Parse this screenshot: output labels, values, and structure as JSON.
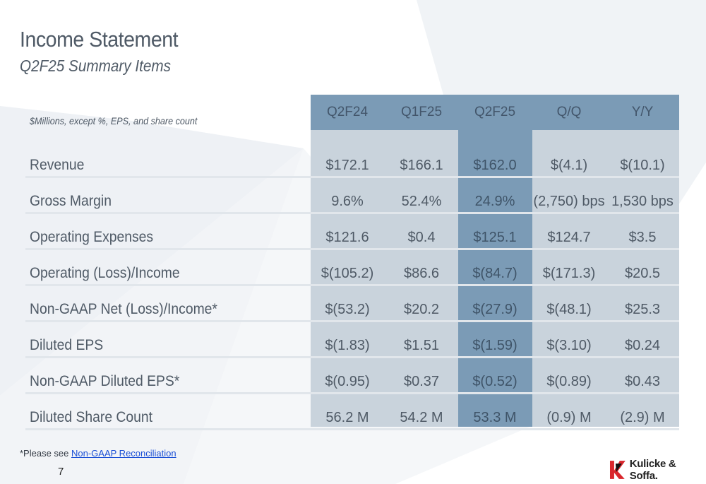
{
  "header": {
    "title": "Income Statement",
    "subtitle": "Q2F25 Summary Items"
  },
  "table": {
    "units_note": "$Millions, except %, EPS, and share count",
    "columns": [
      "Q2F24",
      "Q1F25",
      "Q2F25",
      "Q/Q",
      "Y/Y"
    ],
    "highlighted_column": "Q2F25",
    "rows": [
      {
        "label": "Revenue",
        "values": [
          "$172.1",
          "$166.1",
          "$162.0",
          "$(4.1)",
          "$(10.1)"
        ]
      },
      {
        "label": "Gross Margin",
        "values": [
          "9.6%",
          "52.4%",
          "24.9%",
          "(2,750) bps",
          "1,530 bps"
        ]
      },
      {
        "label": "Operating Expenses",
        "values": [
          "$121.6",
          "$0.4",
          "$125.1",
          "$124.7",
          "$3.5"
        ]
      },
      {
        "label": "Operating (Loss)/Income",
        "values": [
          "$(105.2)",
          "$86.6",
          "$(84.7)",
          "$(171.3)",
          "$20.5"
        ]
      },
      {
        "label": "Non-GAAP Net (Loss)/Income*",
        "values": [
          "$(53.2)",
          "$20.2",
          "$(27.9)",
          "$(48.1)",
          "$25.3"
        ]
      },
      {
        "label": "Diluted EPS",
        "values": [
          "$(1.83)",
          "$1.51",
          "$(1.59)",
          "$(3.10)",
          "$0.24"
        ]
      },
      {
        "label": "Non-GAAP Diluted EPS*",
        "values": [
          "$(0.95)",
          "$0.37",
          "$(0.52)",
          "$(0.89)",
          "$0.43"
        ]
      },
      {
        "label": "Diluted Share Count",
        "values": [
          "56.2 M",
          "54.2 M",
          "53.3 M",
          "(0.9) M",
          "(2.9) M"
        ]
      }
    ]
  },
  "footer": {
    "footnote_prefix": "*Please see ",
    "footnote_link": "Non-GAAP Reconciliation",
    "page_number": "7",
    "logo_text": "Kulicke & Soffa.",
    "logo_icon": "ks-logo-mark-icon"
  },
  "colors": {
    "header_band": "#7b9bb6",
    "column_bg": "#c9d3dc",
    "highlight_column": "#7b9bb6",
    "text": "#4f5a66",
    "link": "#1a4fd6",
    "logo_red": "#d9262b"
  }
}
